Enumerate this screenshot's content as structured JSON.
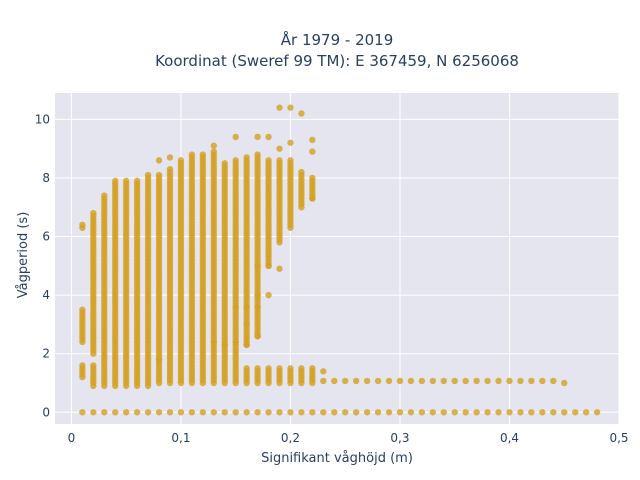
{
  "chart_data": {
    "type": "scatter",
    "title_lines": [
      "År 1979 - 2019",
      "Koordinat (Sweref 99 TM): E 367459, N 6256068"
    ],
    "xlabel": "Signifikant våghöjd (m)",
    "ylabel": "Vågperiod (s)",
    "xlim": [
      -0.015,
      0.5
    ],
    "ylim": [
      -0.4,
      10.9
    ],
    "x_ticks": [
      "0",
      "0,1",
      "0,2",
      "0,3",
      "0,4",
      "0,5"
    ],
    "x_tick_values": [
      0,
      0.1,
      0.2,
      0.3,
      0.4,
      0.5
    ],
    "y_ticks": [
      "0",
      "2",
      "4",
      "6",
      "8",
      "10"
    ],
    "y_tick_values": [
      0,
      2,
      4,
      6,
      8,
      10
    ],
    "grid": true,
    "colors": {
      "marker": "#d4a020",
      "plot_bg": "#e5e5f0",
      "grid": "#ffffff"
    },
    "columns": [
      {
        "x": 0.01,
        "ranges": [
          [
            1.2,
            1.6
          ],
          [
            2.4,
            3.5
          ],
          [
            6.3,
            6.4
          ]
        ]
      },
      {
        "x": 0.02,
        "ranges": [
          [
            0.9,
            1.6
          ],
          [
            2.0,
            6.8
          ]
        ]
      },
      {
        "x": 0.03,
        "ranges": [
          [
            0.9,
            7.4
          ]
        ]
      },
      {
        "x": 0.04,
        "ranges": [
          [
            0.9,
            7.9
          ]
        ]
      },
      {
        "x": 0.05,
        "ranges": [
          [
            0.9,
            7.9
          ]
        ]
      },
      {
        "x": 0.06,
        "ranges": [
          [
            0.9,
            7.9
          ]
        ]
      },
      {
        "x": 0.07,
        "ranges": [
          [
            0.9,
            8.1
          ]
        ]
      },
      {
        "x": 0.08,
        "ranges": [
          [
            1.0,
            8.1
          ]
        ]
      },
      {
        "x": 0.09,
        "ranges": [
          [
            1.0,
            8.3
          ]
        ]
      },
      {
        "x": 0.1,
        "ranges": [
          [
            1.0,
            8.6
          ]
        ]
      },
      {
        "x": 0.11,
        "ranges": [
          [
            1.0,
            8.7
          ]
        ]
      },
      {
        "x": 0.12,
        "ranges": [
          [
            1.0,
            8.8
          ]
        ]
      },
      {
        "x": 0.13,
        "ranges": [
          [
            1.0,
            8.9
          ]
        ]
      },
      {
        "x": 0.14,
        "ranges": [
          [
            1.0,
            8.5
          ]
        ]
      },
      {
        "x": 0.15,
        "ranges": [
          [
            1.0,
            8.6
          ]
        ]
      },
      {
        "x": 0.16,
        "ranges": [
          [
            1.0,
            1.5
          ],
          [
            2.3,
            8.7
          ]
        ]
      },
      {
        "x": 0.17,
        "ranges": [
          [
            1.0,
            1.5
          ],
          [
            2.6,
            8.8
          ]
        ]
      },
      {
        "x": 0.18,
        "ranges": [
          [
            1.0,
            1.5
          ],
          [
            5.0,
            8.6
          ]
        ]
      },
      {
        "x": 0.19,
        "ranges": [
          [
            1.0,
            1.5
          ],
          [
            5.8,
            8.6
          ]
        ]
      },
      {
        "x": 0.2,
        "ranges": [
          [
            1.0,
            1.5
          ],
          [
            6.3,
            8.6
          ]
        ]
      },
      {
        "x": 0.21,
        "ranges": [
          [
            1.0,
            1.5
          ],
          [
            7.0,
            8.2
          ]
        ]
      },
      {
        "x": 0.22,
        "ranges": [
          [
            1.0,
            1.5
          ],
          [
            7.3,
            8.0
          ]
        ]
      }
    ],
    "extra_points": [
      {
        "x": 0.15,
        "y": 9.4
      },
      {
        "x": 0.17,
        "y": 9.4
      },
      {
        "x": 0.18,
        "y": 9.4
      },
      {
        "x": 0.19,
        "y": 10.4
      },
      {
        "x": 0.2,
        "y": 10.4
      },
      {
        "x": 0.21,
        "y": 10.2
      },
      {
        "x": 0.22,
        "y": 9.3
      },
      {
        "x": 0.22,
        "y": 8.9
      },
      {
        "x": 0.22,
        "y": 7.3
      },
      {
        "x": 0.19,
        "y": 9.0
      },
      {
        "x": 0.2,
        "y": 9.2
      },
      {
        "x": 0.13,
        "y": 9.1
      },
      {
        "x": 0.08,
        "y": 8.6
      },
      {
        "x": 0.09,
        "y": 8.7
      },
      {
        "x": 0.11,
        "y": 8.8
      },
      {
        "x": 0.17,
        "y": 5.0
      },
      {
        "x": 0.18,
        "y": 5.0
      },
      {
        "x": 0.19,
        "y": 4.9
      },
      {
        "x": 0.17,
        "y": 4.0
      },
      {
        "x": 0.18,
        "y": 4.0
      },
      {
        "x": 0.17,
        "y": 3.6
      },
      {
        "x": 0.15,
        "y": 3.6
      },
      {
        "x": 0.16,
        "y": 3.6
      },
      {
        "x": 0.17,
        "y": 2.6
      },
      {
        "x": 0.15,
        "y": 2.4
      },
      {
        "x": 0.16,
        "y": 2.3
      },
      {
        "x": 0.13,
        "y": 2.4
      },
      {
        "x": 0.14,
        "y": 2.3
      },
      {
        "x": 0.08,
        "y": 1.8
      },
      {
        "x": 0.16,
        "y": 3.0
      },
      {
        "x": 0.23,
        "y": 1.4
      },
      {
        "x": 0.45,
        "y": 1.0
      }
    ],
    "row_1_1": {
      "y": 1.07,
      "x_start": 0.23,
      "x_end": 0.44
    },
    "row_0": {
      "y": 0,
      "x_start": 0.01,
      "x_end": 0.48
    }
  }
}
